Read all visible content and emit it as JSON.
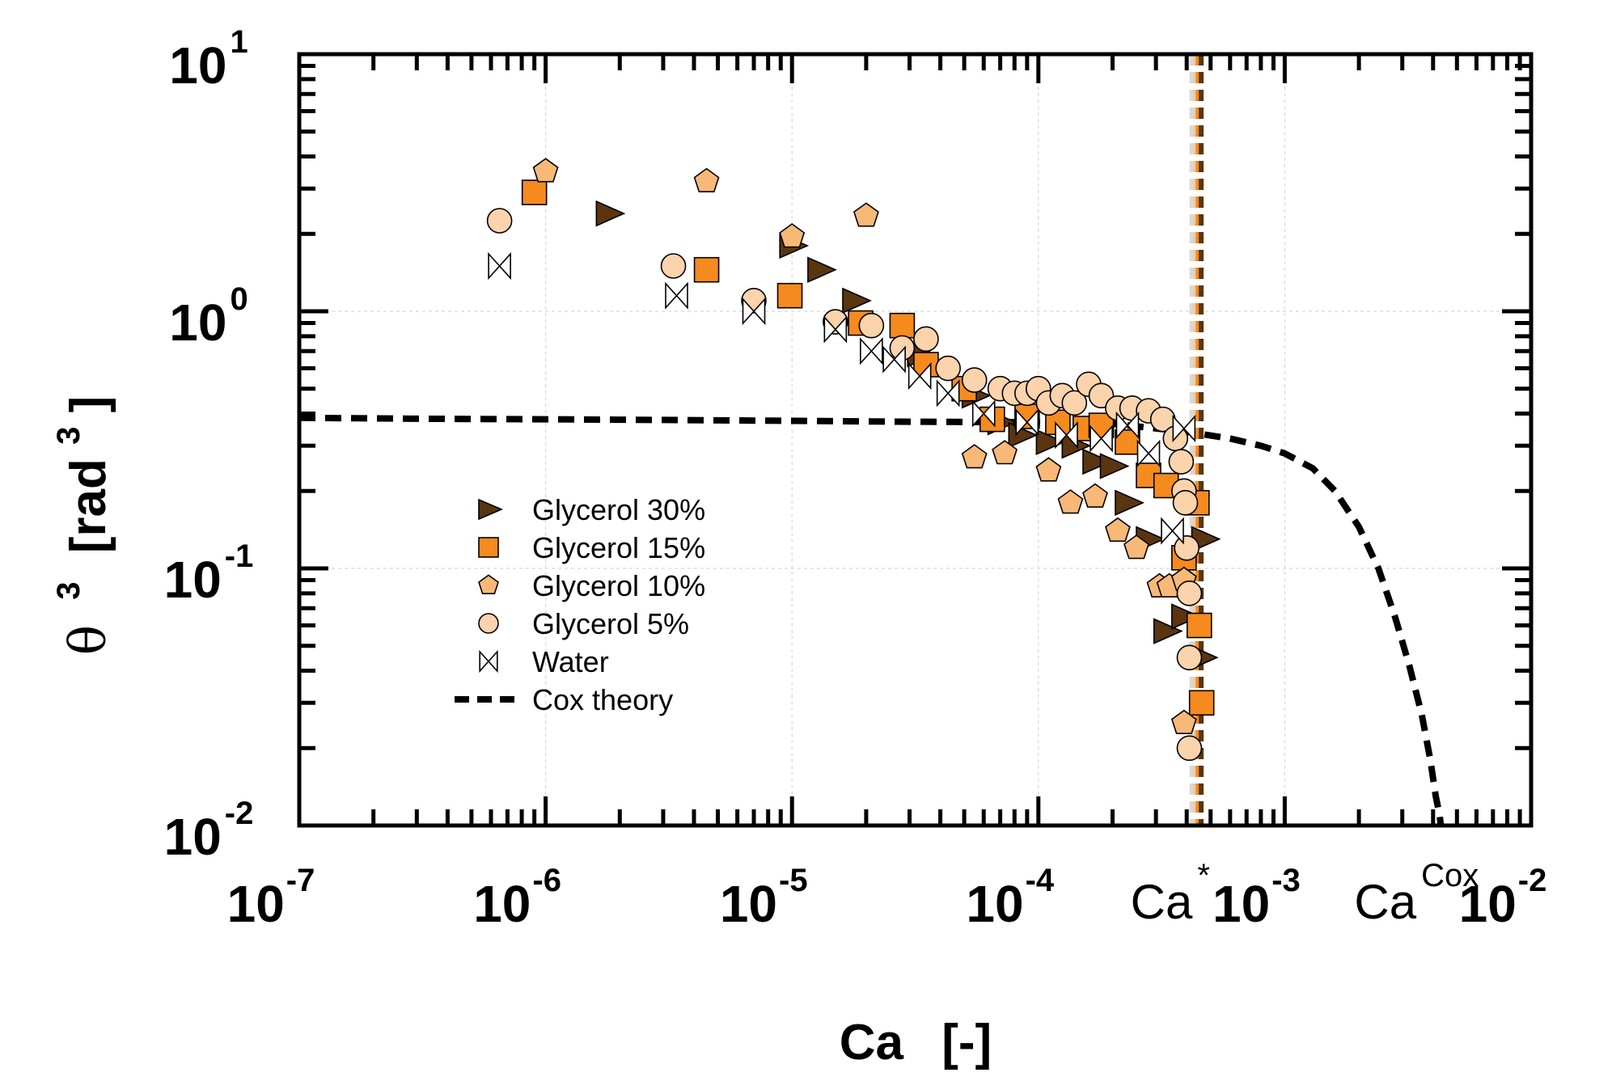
{
  "chart_data": {
    "type": "scatter",
    "title": "",
    "xlabel": "Ca",
    "xlabel_unit": "[-]",
    "ylabel_symbol": "θ",
    "ylabel_exp": "3",
    "ylabel_unit_open": "[rad",
    "ylabel_unit_exp": "3",
    "ylabel_unit_close": "]",
    "x_scale": "log",
    "y_scale": "log",
    "xlim": [
      1e-07,
      0.01
    ],
    "ylim": [
      0.01,
      10
    ],
    "x_tick_labels": [
      {
        "base": "10",
        "exp": "-7",
        "value": 1e-07
      },
      {
        "base": "10",
        "exp": "-6",
        "value": 1e-06
      },
      {
        "base": "10",
        "exp": "-5",
        "value": 1e-05
      },
      {
        "base": "10",
        "exp": "-4",
        "value": 0.0001
      },
      {
        "base": "10",
        "exp": "-3",
        "value": 0.001
      },
      {
        "base": "10",
        "exp": "-2",
        "value": 0.01
      }
    ],
    "y_tick_labels": [
      {
        "base": "10",
        "exp": "1",
        "value": 10
      },
      {
        "base": "10",
        "exp": "0",
        "value": 1
      },
      {
        "base": "10",
        "exp": "-1",
        "value": 0.1
      },
      {
        "base": "10",
        "exp": "-2",
        "value": 0.01
      }
    ],
    "grid": true,
    "legend_position": "center-left",
    "annotations": [
      {
        "base": "Ca",
        "sup": "*",
        "value": 0.00043
      },
      {
        "base": "Ca",
        "sup": "Cox",
        "value": 0.0043
      }
    ],
    "vertical_lines": [
      {
        "value": 0.00042,
        "color": "#d9d9d9"
      },
      {
        "value": 0.000435,
        "color": "#f5c9a0"
      },
      {
        "value": 0.000445,
        "color": "#f58a1f"
      },
      {
        "value": 0.000458,
        "color": "#5a3510"
      }
    ],
    "series": [
      {
        "name": "Glycerol 30%",
        "marker": "triangle-right",
        "color": "#5a3510",
        "x": [
          1.8e-06,
          1e-05,
          1.3e-05,
          1.8e-05,
          3.3e-05,
          5.5e-05,
          7e-05,
          8.5e-05,
          0.00011,
          0.00014,
          0.00017,
          0.0002,
          0.00023,
          0.00028,
          0.00033,
          0.00039,
          0.00047,
          0.00046
        ],
        "y": [
          2.4,
          1.8,
          1.45,
          1.1,
          0.68,
          0.47,
          0.37,
          0.33,
          0.31,
          0.3,
          0.26,
          0.25,
          0.18,
          0.13,
          0.057,
          0.065,
          0.13,
          0.045
        ]
      },
      {
        "name": "Glycerol 15%",
        "marker": "square",
        "color": "#f58a1f",
        "x": [
          9e-07,
          4.5e-06,
          9.8e-06,
          1.9e-05,
          2.8e-05,
          3.5e-05,
          5e-05,
          6.5e-05,
          9e-05,
          0.00012,
          0.000155,
          0.00018,
          0.00023,
          0.00028,
          0.00033,
          0.00039,
          0.00044,
          0.00045,
          0.00046
        ],
        "y": [
          2.9,
          1.45,
          1.15,
          0.9,
          0.88,
          0.62,
          0.5,
          0.38,
          0.39,
          0.37,
          0.35,
          0.36,
          0.31,
          0.23,
          0.21,
          0.11,
          0.18,
          0.06,
          0.03
        ]
      },
      {
        "name": "Glycerol 10%",
        "marker": "pentagon",
        "color": "#f8b878",
        "x": [
          1e-06,
          4.5e-06,
          1e-05,
          2e-05,
          5.5e-05,
          7.3e-05,
          0.00011,
          0.000135,
          0.00017,
          0.00021,
          0.00025,
          0.00031,
          0.00034,
          0.00039,
          0.00039
        ],
        "y": [
          3.5,
          3.2,
          1.95,
          2.35,
          0.27,
          0.28,
          0.24,
          0.18,
          0.19,
          0.14,
          0.12,
          0.085,
          0.085,
          0.09,
          0.025
        ]
      },
      {
        "name": "Glycerol 5%",
        "marker": "circle",
        "color": "#fbd3ac",
        "x": [
          6.5e-07,
          3.3e-06,
          7e-06,
          1.5e-05,
          2.1e-05,
          2.8e-05,
          3.5e-05,
          4.3e-05,
          5.5e-05,
          7e-05,
          8e-05,
          9e-05,
          0.0001,
          0.00011,
          0.000125,
          0.00014,
          0.00016,
          0.00018,
          0.00021,
          0.00024,
          0.00028,
          0.00032,
          0.00036,
          0.00038,
          0.00039,
          0.000395,
          0.0004,
          0.00041,
          0.00041,
          0.00041
        ],
        "y": [
          2.25,
          1.5,
          1.1,
          0.91,
          0.88,
          0.72,
          0.78,
          0.6,
          0.54,
          0.5,
          0.48,
          0.48,
          0.5,
          0.44,
          0.47,
          0.44,
          0.52,
          0.47,
          0.42,
          0.42,
          0.41,
          0.38,
          0.32,
          0.26,
          0.2,
          0.18,
          0.12,
          0.08,
          0.045,
          0.02
        ]
      },
      {
        "name": "Water",
        "marker": "bowtie",
        "color": "#ffffff",
        "x": [
          6.5e-07,
          3.4e-06,
          7e-06,
          1.5e-05,
          2.1e-05,
          2.6e-05,
          3.3e-05,
          4.3e-05,
          6e-05,
          9e-05,
          0.00013,
          0.00018,
          0.00023,
          0.00028,
          0.00035,
          0.00039
        ],
        "y": [
          1.5,
          1.15,
          1.0,
          0.85,
          0.7,
          0.65,
          0.56,
          0.48,
          0.4,
          0.37,
          0.33,
          0.32,
          0.36,
          0.28,
          0.14,
          0.35
        ]
      }
    ],
    "theory": {
      "name": "Cox theory",
      "x": [
        1e-07,
        3e-07,
        1e-06,
        3e-06,
        1e-05,
        3e-05,
        0.0001,
        0.0002,
        0.0004,
        0.0006,
        0.0008,
        0.001,
        0.0013,
        0.0016,
        0.002,
        0.0024,
        0.0028,
        0.0032,
        0.0036,
        0.0039,
        0.0041,
        0.00425,
        0.0043
      ],
      "y": [
        0.385,
        0.382,
        0.38,
        0.378,
        0.375,
        0.372,
        0.37,
        0.365,
        0.34,
        0.32,
        0.3,
        0.28,
        0.245,
        0.2,
        0.145,
        0.1,
        0.065,
        0.042,
        0.027,
        0.018,
        0.013,
        0.011,
        0.01
      ]
    }
  }
}
